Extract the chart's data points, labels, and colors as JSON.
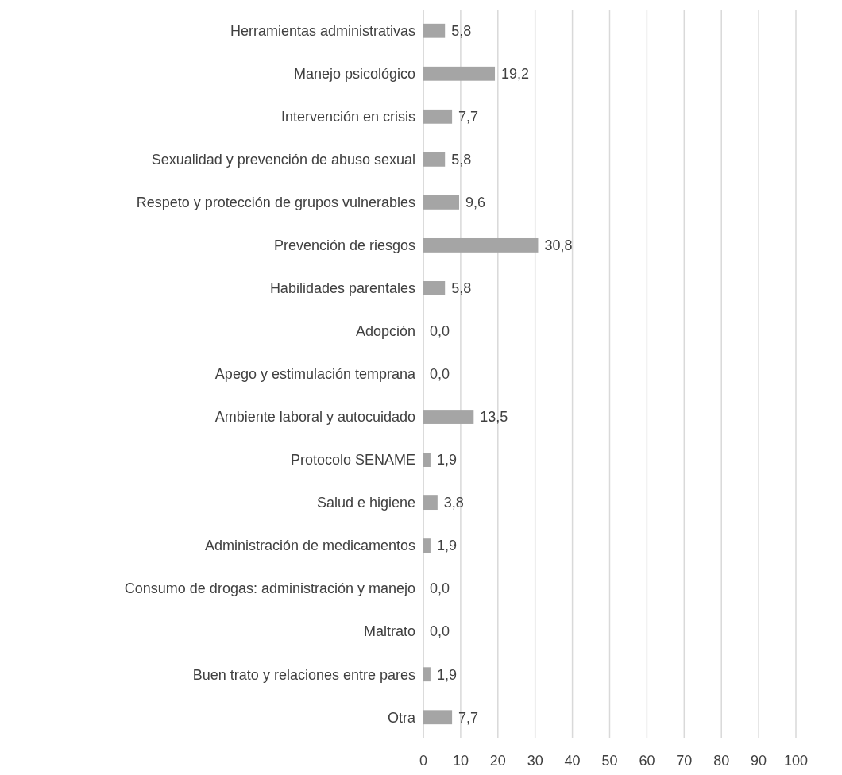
{
  "chart_data": {
    "type": "bar",
    "orientation": "horizontal",
    "categories": [
      "Herramientas administrativas",
      "Manejo psicológico",
      "Intervención en crisis",
      "Sexualidad y prevención de abuso sexual",
      "Respeto y protección de grupos vulnerables",
      "Prevención de riesgos",
      "Habilidades parentales",
      "Adopción",
      "Apego y estimulación temprana",
      "Ambiente laboral y autocuidado",
      "Protocolo SENAME",
      "Salud e higiene",
      "Administración de medicamentos",
      "Consumo de drogas: administración y manejo",
      "Maltrato",
      "Buen trato y relaciones entre pares",
      "Otra"
    ],
    "values": [
      5.8,
      19.2,
      7.7,
      5.8,
      9.6,
      30.8,
      5.8,
      0,
      0,
      13.5,
      1.9,
      3.8,
      1.9,
      0,
      0,
      1.9,
      7.7
    ],
    "value_labels": [
      "5,8",
      "19,2",
      "7,7",
      "5,8",
      "9,6",
      "30,8",
      "5,8",
      "0,0",
      "0,0",
      "13,5",
      "1,9",
      "3,8",
      "1,9",
      "0,0",
      "0,0",
      "1,9",
      "7,7"
    ],
    "color": "#a5a5a5",
    "xlim": [
      0,
      100
    ],
    "xticks": [
      0,
      10,
      20,
      30,
      40,
      50,
      60,
      70,
      80,
      90,
      100
    ],
    "grid": "x"
  }
}
